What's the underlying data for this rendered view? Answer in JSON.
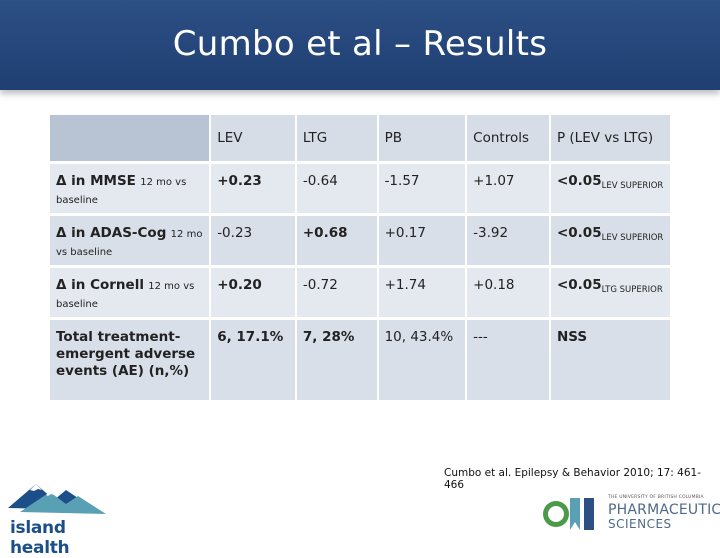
{
  "slide": {
    "title": "Cumbo et al – Results",
    "citation": "Cumbo et al. Epilepsy & Behavior 2010; 17: 461-466"
  },
  "table": {
    "headers": [
      "",
      "LEV",
      "LTG",
      "PB",
      "Controls",
      "P (LEV vs LTG)"
    ],
    "rows": [
      {
        "label_main": "Δ in MMSE",
        "label_small_inline": "12 mo vs",
        "label_small_next": "baseline",
        "lev": "+0.23",
        "ltg": "-0.64",
        "pb": "-1.57",
        "controls": "+1.07",
        "p_main": "<0.05",
        "p_sub": "LEV SUPERIOR"
      },
      {
        "label_main": "Δ in ADAS-Cog",
        "label_small_inline": "12 mo",
        "label_small_next": "vs baseline",
        "lev": "-0.23",
        "ltg": "+0.68",
        "pb": "+0.17",
        "controls": "-3.92",
        "p_main": "<0.05",
        "p_sub": "LEV SUPERIOR"
      },
      {
        "label_main": "Δ in Cornell",
        "label_small_inline": "12 mo vs",
        "label_small_next": "baseline",
        "lev": "+0.20",
        "ltg": "-0.72",
        "pb": "+1.74",
        "controls": "+0.18",
        "p_main": "<0.05",
        "p_sub": "LTG SUPERIOR"
      },
      {
        "label_main": "Total treatment-emergent adverse events (AE) (n,%)",
        "lev": "6, 17.1%",
        "ltg": "7, 28%",
        "pb": "10, 43.4%",
        "controls": "---",
        "p_main": "NSS"
      }
    ]
  },
  "logos": {
    "left_text": "island health",
    "right_univ": "THE UNIVERSITY OF BRITISH COLUMBIA",
    "right_line1": "PHARMACEUTICAL",
    "right_line2": "SCIENCES"
  },
  "colors": {
    "title_bar": "#2c4f84",
    "header_row": "#d7dde6",
    "row_light": "#e4e9ef",
    "row_dark": "#d9dfe8",
    "logo_blue": "#1c4f8a",
    "logo_teal": "#5aa0b5",
    "logo_green": "#4a9a4a"
  }
}
